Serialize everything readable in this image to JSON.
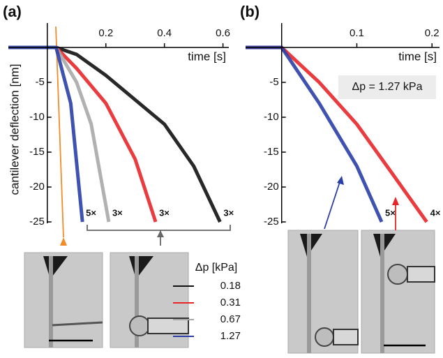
{
  "chart_data": [
    {
      "type": "line",
      "panel_label": "(a)",
      "xlabel": "time [s]",
      "ylabel": "cantilever deflection [nm]",
      "xlim": [
        -0.133,
        0.62
      ],
      "ylim": [
        -25,
        3.5
      ],
      "xticks": [
        0.2,
        0.4,
        0.6
      ],
      "yticks": [
        -5,
        -10,
        -15,
        -20,
        -25
      ],
      "legend_title": "Δp [kPa]",
      "series": [
        {
          "name": "0.18",
          "color": "#111111",
          "label": "3×",
          "x": [
            -0.133,
            0.03,
            0.1,
            0.2,
            0.3,
            0.4,
            0.5,
            0.59
          ],
          "values": [
            0,
            0,
            -1,
            -4,
            -7.5,
            -11,
            -17,
            -25
          ]
        },
        {
          "name": "0.31",
          "color": "#e8262a",
          "label": "3×",
          "x": [
            -0.133,
            0.03,
            0.1,
            0.2,
            0.3,
            0.37
          ],
          "values": [
            0,
            0,
            -3,
            -8,
            -16,
            -25
          ]
        },
        {
          "name": "0.67",
          "color": "#a8a8a8",
          "label": "3×",
          "x": [
            -0.133,
            0.03,
            0.1,
            0.15,
            0.21
          ],
          "values": [
            0,
            0,
            -5,
            -11,
            -25
          ]
        },
        {
          "name": "1.27",
          "color": "#2b3fa6",
          "label": "5×",
          "x": [
            -0.133,
            0.03,
            0.08,
            0.12
          ],
          "values": [
            0,
            0,
            -8,
            -25
          ]
        }
      ]
    },
    {
      "type": "line",
      "panel_label": "(b)",
      "xlabel": "time  [s]",
      "annotation": "Δp = 1.27 kPa",
      "xlim": [
        -0.048,
        0.21
      ],
      "ylim": [
        -25,
        3.5
      ],
      "xticks": [
        0.1,
        0.2
      ],
      "yticks": [
        -5,
        -10,
        -15,
        -20,
        -25
      ],
      "series": [
        {
          "color": "#e8262a",
          "label": "4×",
          "x": [
            -0.048,
            0.0,
            0.05,
            0.1,
            0.15,
            0.193
          ],
          "values": [
            0,
            0,
            -5,
            -11,
            -18.5,
            -25
          ]
        },
        {
          "color": "#2b3fa6",
          "label": "5×",
          "x": [
            -0.048,
            0.0,
            0.05,
            0.1,
            0.133
          ],
          "values": [
            0,
            0,
            -8,
            -17,
            -25
          ]
        }
      ]
    }
  ]
}
